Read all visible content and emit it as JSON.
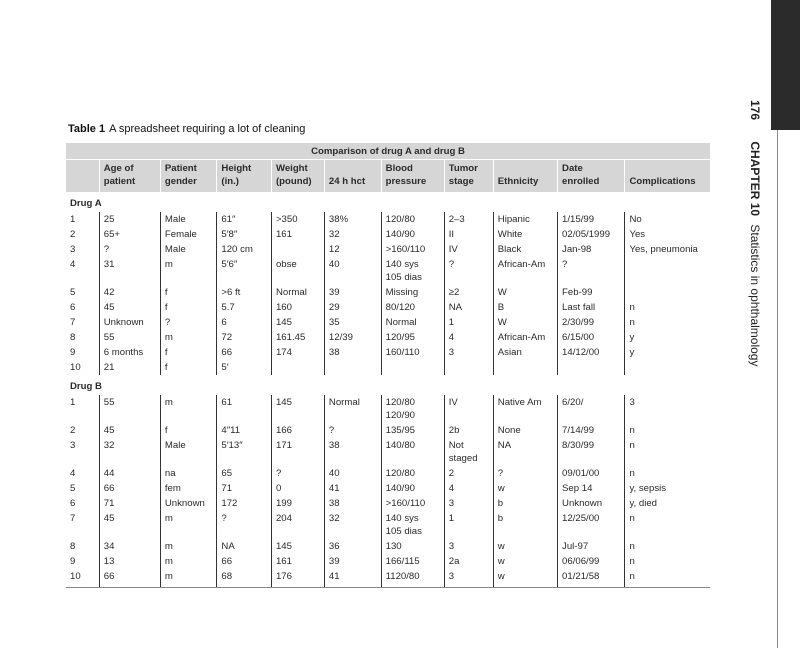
{
  "running_header": {
    "page_number": "176",
    "chapter": "CHAPTER 10",
    "title": "Statistics in ophthalmology"
  },
  "table": {
    "label": "Table 1",
    "caption": "A spreadsheet requiring a lot of cleaning",
    "super_header": "Comparison of drug A and drug B",
    "columns": [
      "",
      "Age of\npatient",
      "Patient\ngender",
      "Height\n(in.)",
      "Weight\n(pound)",
      "24 h hct",
      "Blood\npressure",
      "Tumor\nstage",
      "Ethnicity",
      "Date\nenrolled",
      "Complications"
    ],
    "groups": [
      {
        "name": "Drug A",
        "rows": [
          [
            "1",
            "25",
            "Male",
            "61″",
            ">350",
            "38%",
            "120/80",
            "2–3",
            "Hipanic",
            "1/15/99",
            "No"
          ],
          [
            "2",
            "65+",
            "Female",
            "5′8″",
            "161",
            "32",
            "140/90",
            "II",
            "White",
            "02/05/1999",
            "Yes"
          ],
          [
            "3",
            "?",
            "Male",
            "120 cm",
            "",
            "12",
            ">160/110",
            "IV",
            "Black",
            "Jan-98",
            "Yes, pneumonia"
          ],
          [
            "4",
            "31",
            "m",
            "5′6″",
            "obse",
            "40",
            "140 sys\n105 dias",
            "?",
            "African-Am",
            "?",
            ""
          ],
          [
            "5",
            "42",
            "f",
            ">6 ft",
            "Normal",
            "39",
            "Missing",
            "≥2",
            "W",
            "Feb-99",
            ""
          ],
          [
            "6",
            "45",
            "f",
            "5.7",
            "160",
            "29",
            "80/120",
            "NA",
            "B",
            "Last fall",
            "n"
          ],
          [
            "7",
            "Unknown",
            "?",
            "6",
            "145",
            "35",
            "Normal",
            "1",
            "W",
            "2/30/99",
            "n"
          ],
          [
            "8",
            "55",
            "m",
            "72",
            "161.45",
            "12/39",
            "120/95",
            "4",
            "African-Am",
            "6/15/00",
            "y"
          ],
          [
            "9",
            "6 months",
            "f",
            "66",
            "174",
            "38",
            "160/110",
            "3",
            "Asian",
            "14/12/00",
            "y"
          ],
          [
            "10",
            "21",
            "f",
            "5′",
            "",
            "",
            "",
            "",
            "",
            "",
            ""
          ]
        ]
      },
      {
        "name": "Drug B",
        "rows": [
          [
            "1",
            "55",
            "m",
            "61",
            "145",
            "Normal",
            "120/80\n120/90",
            "IV",
            "Native Am",
            "6/20/",
            "3"
          ],
          [
            "2",
            "45",
            "f",
            "4″11",
            "166",
            "?",
            "135/95",
            "2b",
            "None",
            "7/14/99",
            "n"
          ],
          [
            "3",
            "32",
            "Male",
            "5′13″",
            "171",
            "38",
            "140/80",
            "Not\nstaged",
            "NA",
            "8/30/99",
            "n"
          ],
          [
            "4",
            "44",
            "na",
            "65",
            "?",
            "40",
            "120/80",
            "2",
            "?",
            "09/01/00",
            "n"
          ],
          [
            "5",
            "66",
            "fem",
            "71",
            "0",
            "41",
            "140/90",
            "4",
            "w",
            "Sep 14",
            "y, sepsis"
          ],
          [
            "6",
            "71",
            "Unknown",
            "172",
            "199",
            "38",
            ">160/110",
            "3",
            "b",
            "Unknown",
            "y, died"
          ],
          [
            "7",
            "45",
            "m",
            "?",
            "204",
            "32",
            "140 sys\n105 dias",
            "1",
            "b",
            "12/25/00",
            "n"
          ],
          [
            "8",
            "34",
            "m",
            "NA",
            "145",
            "36",
            "130",
            "3",
            "w",
            "Jul-97",
            "n"
          ],
          [
            "9",
            "13",
            "m",
            "66",
            "161",
            "39",
            "166/115",
            "2a",
            "w",
            "06/06/99",
            "n"
          ],
          [
            "10",
            "66",
            "m",
            "68",
            "176",
            "41",
            "1120/80",
            "3",
            "w",
            "01/21/58",
            "n"
          ]
        ]
      }
    ]
  }
}
